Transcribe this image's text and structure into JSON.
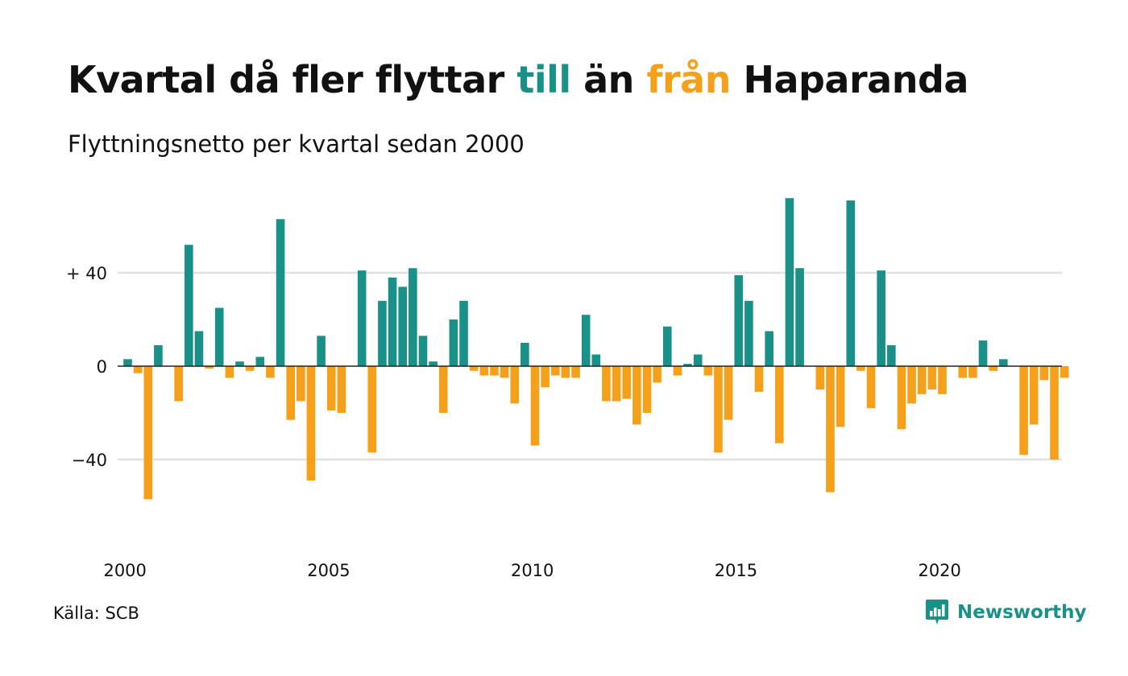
{
  "header": {
    "title_part1": "Kvartal då fler flyttar ",
    "title_till": "till",
    "title_part2": " än ",
    "title_fran": "från",
    "title_part3": " Haparanda",
    "subtitle": "Flyttningsnetto per kvartal sedan 2000"
  },
  "footer": {
    "source": "Källa: SCB",
    "brand": "Newsworthy"
  },
  "colors": {
    "positive": "#1a9188",
    "negative": "#f5a01a",
    "grid": "#e2e2e2",
    "zero_line": "#222222",
    "text": "#111111"
  },
  "chart_data": {
    "type": "bar",
    "title": "Kvartal då fler flyttar till än från Haparanda",
    "subtitle": "Flyttningsnetto per kvartal sedan 2000",
    "xlabel": "",
    "ylabel": "",
    "x_start": 2000,
    "periods_per_year": 4,
    "xticks": [
      2000,
      2005,
      2010,
      2015,
      2020
    ],
    "xtick_labels": [
      "2000",
      "2005",
      "2010",
      "2015",
      "2020"
    ],
    "yticks": [
      -40,
      0,
      40
    ],
    "ytick_labels": [
      "−40",
      "0",
      "+ 40"
    ],
    "ylim": [
      -75,
      75
    ],
    "grid": true,
    "legend": "none",
    "values": [
      3,
      -3,
      -57,
      9,
      0,
      -15,
      52,
      15,
      -1,
      25,
      -5,
      2,
      -2,
      4,
      -5,
      63,
      -23,
      -15,
      -49,
      13,
      -19,
      -20,
      0,
      41,
      -37,
      28,
      38,
      34,
      42,
      13,
      2,
      -20,
      20,
      28,
      -2,
      -4,
      -4,
      -5,
      -16,
      10,
      -34,
      -9,
      -4,
      -5,
      -5,
      22,
      5,
      -15,
      -15,
      -14,
      -25,
      -20,
      -7,
      17,
      -4,
      1,
      5,
      -4,
      -37,
      -23,
      39,
      28,
      -11,
      15,
      -33,
      72,
      42,
      0,
      -10,
      -54,
      -26,
      71,
      -2,
      -18,
      41,
      9,
      -27,
      -16,
      -12,
      -10,
      -12,
      0,
      -5,
      -5,
      11,
      -2,
      3,
      0,
      -38,
      -25,
      -6,
      -40,
      -5
    ]
  }
}
